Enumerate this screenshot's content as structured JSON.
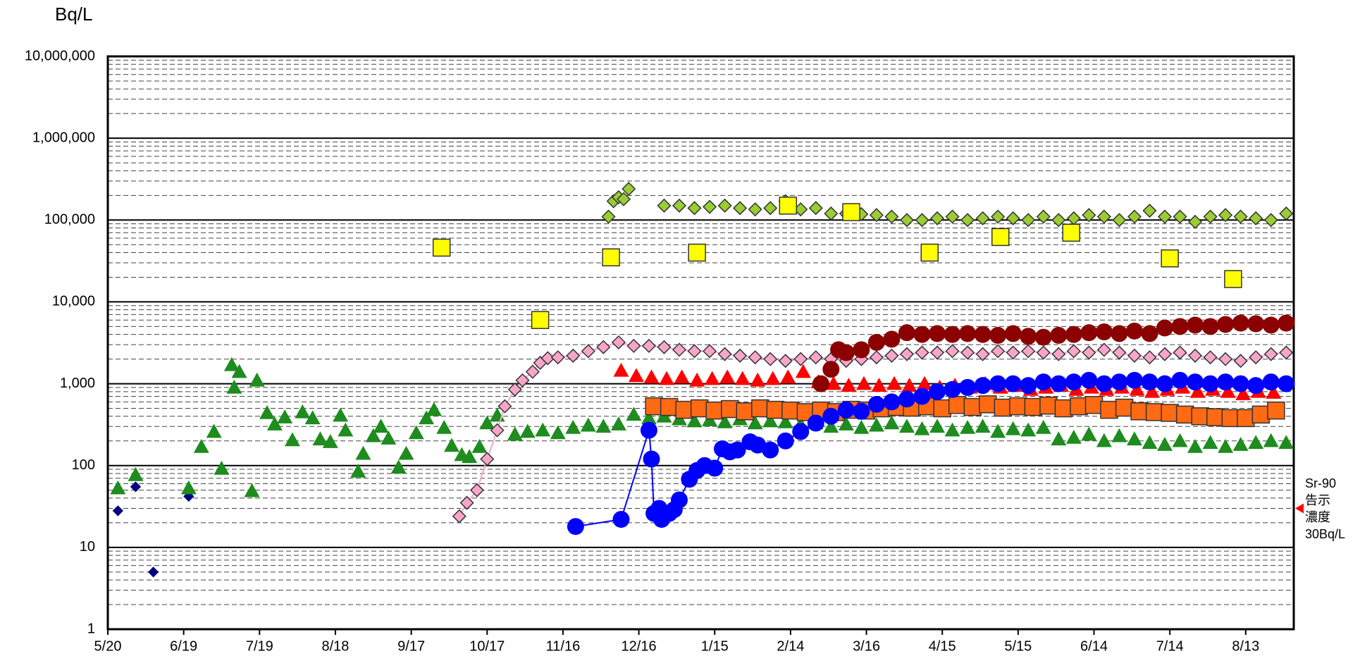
{
  "chart_data": {
    "type": "scatter",
    "y_label": "Bq/L",
    "log_y": true,
    "grid": true,
    "minor_grid": true,
    "xlim": [
      0,
      469
    ],
    "xticks": [
      {
        "value": 0,
        "label": "5/20"
      },
      {
        "value": 30,
        "label": "6/19"
      },
      {
        "value": 60,
        "label": "7/19"
      },
      {
        "value": 90,
        "label": "8/18"
      },
      {
        "value": 120,
        "label": "9/17"
      },
      {
        "value": 150,
        "label": "10/17"
      },
      {
        "value": 180,
        "label": "11/16"
      },
      {
        "value": 210,
        "label": "12/16"
      },
      {
        "value": 240,
        "label": "1/15"
      },
      {
        "value": 270,
        "label": "2/14"
      },
      {
        "value": 300,
        "label": "3/16"
      },
      {
        "value": 330,
        "label": "4/15"
      },
      {
        "value": 360,
        "label": "5/15"
      },
      {
        "value": 390,
        "label": "6/14"
      },
      {
        "value": 420,
        "label": "7/14"
      },
      {
        "value": 450,
        "label": "8/13"
      }
    ],
    "ylim": [
      1,
      10000000
    ],
    "yticks": [
      1,
      10,
      100,
      {
        "value": 1000,
        "label": "1,000"
      },
      {
        "value": 10000,
        "label": "10,000"
      },
      {
        "value": 100000,
        "label": "100,000"
      },
      {
        "value": 1000000,
        "label": "1,000,000"
      },
      {
        "value": 10000000,
        "label": "10,000,000"
      }
    ],
    "series": [
      {
        "color": "#000080",
        "marker": "diamond",
        "x": [
          4,
          11,
          18,
          32
        ],
        "values": [
          28,
          55,
          5,
          42
        ]
      },
      {
        "color": "#1e8c1e",
        "marker": "triangle",
        "x": [
          4,
          11,
          32,
          37,
          42,
          45,
          49,
          50,
          52,
          57,
          59,
          63,
          66,
          70,
          73,
          77,
          81,
          84,
          88,
          92,
          94,
          99,
          101,
          105,
          108,
          111,
          115,
          118,
          122,
          126,
          129,
          133,
          136,
          140,
          143,
          147,
          150,
          154,
          161,
          166,
          172,
          178,
          184,
          190,
          196,
          202,
          208,
          214,
          220,
          226,
          232,
          238,
          244,
          250,
          256,
          262,
          268,
          274,
          280,
          286,
          292,
          298,
          304,
          310,
          316,
          322,
          328,
          334,
          340,
          346,
          352,
          358,
          364,
          370,
          376,
          382,
          388,
          394,
          400,
          406,
          412,
          418,
          424,
          430,
          436,
          442,
          448,
          454,
          460,
          466
        ],
        "values": [
          53,
          77,
          53,
          170,
          260,
          92,
          1700,
          900,
          1400,
          49,
          1100,
          440,
          320,
          390,
          205,
          450,
          380,
          210,
          195,
          410,
          270,
          85,
          140,
          230,
          300,
          215,
          95,
          140,
          250,
          380,
          480,
          290,
          175,
          135,
          128,
          170,
          330,
          410,
          240,
          260,
          270,
          250,
          290,
          310,
          300,
          320,
          420,
          380,
          400,
          370,
          350,
          360,
          340,
          370,
          330,
          350,
          340,
          320,
          330,
          300,
          320,
          290,
          310,
          330,
          300,
          280,
          300,
          270,
          290,
          300,
          260,
          280,
          270,
          290,
          210,
          220,
          240,
          200,
          230,
          210,
          190,
          180,
          200,
          170,
          190,
          170,
          180,
          190,
          200,
          190
        ]
      },
      {
        "color": "#f7a6c9",
        "marker": "diamond",
        "line": true,
        "x": [
          139,
          142,
          146,
          150,
          154,
          157,
          161,
          164,
          168,
          171,
          174,
          178,
          184,
          190,
          196,
          202,
          208,
          214,
          220,
          226,
          232,
          238,
          244,
          250,
          256,
          262,
          268,
          274,
          280,
          286,
          292,
          298,
          304,
          310,
          316,
          322,
          328,
          334,
          340,
          346,
          352,
          358,
          364,
          370,
          376,
          382,
          388,
          394,
          400,
          406,
          412,
          418,
          424,
          430,
          436,
          442,
          448,
          454,
          460,
          466
        ],
        "values": [
          24,
          35,
          50,
          120,
          270,
          530,
          850,
          1100,
          1400,
          1800,
          2050,
          2100,
          2200,
          2500,
          2800,
          3200,
          2900,
          2900,
          2800,
          2600,
          2500,
          2500,
          2300,
          2200,
          2100,
          2000,
          1900,
          2000,
          2100,
          2000,
          1900,
          2000,
          2100,
          2200,
          2300,
          2400,
          2400,
          2500,
          2400,
          2300,
          2500,
          2400,
          2500,
          2400,
          2300,
          2500,
          2400,
          2600,
          2400,
          2200,
          2100,
          2300,
          2400,
          2200,
          2100,
          2000,
          1900,
          2100,
          2300,
          2400
        ]
      },
      {
        "color": "#9acd32",
        "marker": "diamond",
        "x": [
          198,
          200,
          202,
          204,
          206,
          220,
          226,
          232,
          238,
          244,
          250,
          256,
          262,
          268,
          274,
          280,
          286,
          292,
          298,
          304,
          310,
          316,
          322,
          328,
          334,
          340,
          346,
          352,
          358,
          364,
          370,
          376,
          382,
          388,
          394,
          400,
          406,
          412,
          418,
          424,
          430,
          436,
          442,
          448,
          454,
          460,
          466
        ],
        "values": [
          110000,
          170000,
          190000,
          180000,
          240000,
          150000,
          150000,
          140000,
          145000,
          150000,
          140000,
          135000,
          140000,
          170000,
          135000,
          140000,
          120000,
          120000,
          118000,
          115000,
          110000,
          100000,
          100000,
          105000,
          110000,
          100000,
          105000,
          110000,
          105000,
          100000,
          110000,
          100000,
          105000,
          115000,
          110000,
          100000,
          110000,
          130000,
          110000,
          110000,
          95000,
          110000,
          115000,
          110000,
          105000,
          100000,
          120000
        ]
      },
      {
        "color": "#ffff00",
        "marker": "square",
        "x": [
          132,
          171,
          199,
          233,
          269,
          294,
          325,
          353,
          381,
          420,
          445
        ],
        "values": [
          46000,
          6000,
          35000,
          40000,
          150000,
          125000,
          40000,
          62000,
          70000,
          34000,
          19000
        ]
      },
      {
        "color": "#ff0000",
        "marker": "triangle",
        "x": [
          203,
          209,
          215,
          221,
          227,
          233,
          239,
          245,
          251,
          257,
          263,
          269,
          275,
          281,
          287,
          293,
          299,
          305,
          311,
          317,
          323,
          329,
          335,
          341,
          347,
          353,
          359,
          365,
          371,
          377,
          383,
          389,
          395,
          401,
          407,
          413,
          419,
          425,
          431,
          437,
          443,
          449,
          455,
          461
        ],
        "values": [
          1450,
          1250,
          1200,
          1150,
          1200,
          1100,
          1150,
          1200,
          1150,
          1100,
          1150,
          1200,
          1400,
          1050,
          1000,
          950,
          1000,
          950,
          1000,
          950,
          1000,
          900,
          950,
          900,
          1000,
          900,
          950,
          850,
          900,
          950,
          850,
          900,
          850,
          900,
          850,
          800,
          850,
          900,
          800,
          850,
          800,
          750,
          800,
          780
        ]
      },
      {
        "color": "#ff6a13",
        "marker": "square",
        "x": [
          216,
          222,
          228,
          234,
          240,
          246,
          252,
          258,
          264,
          270,
          276,
          282,
          288,
          294,
          300,
          306,
          312,
          318,
          324,
          330,
          336,
          342,
          348,
          354,
          360,
          366,
          372,
          378,
          384,
          390,
          396,
          402,
          408,
          414,
          420,
          426,
          432,
          438,
          444,
          450,
          456,
          462
        ],
        "values": [
          530,
          520,
          480,
          500,
          470,
          490,
          460,
          500,
          480,
          470,
          450,
          470,
          450,
          480,
          470,
          500,
          520,
          510,
          530,
          500,
          550,
          520,
          560,
          510,
          530,
          520,
          540,
          500,
          530,
          550,
          480,
          510,
          460,
          450,
          440,
          420,
          400,
          390,
          380,
          380,
          420,
          470
        ]
      },
      {
        "color": "#8b0000",
        "marker": "circle",
        "x": [
          282,
          286,
          289,
          292,
          298,
          304,
          310,
          316,
          322,
          328,
          334,
          340,
          346,
          352,
          358,
          364,
          370,
          376,
          382,
          388,
          394,
          400,
          406,
          412,
          418,
          424,
          430,
          436,
          442,
          448,
          454,
          460,
          466
        ],
        "values": [
          1000,
          1500,
          2600,
          2400,
          2600,
          3200,
          3500,
          4200,
          4000,
          4100,
          4000,
          4100,
          4000,
          3900,
          4100,
          3800,
          3700,
          3900,
          4000,
          4200,
          4300,
          4100,
          4400,
          4100,
          4800,
          5000,
          5200,
          5000,
          5300,
          5500,
          5400,
          5200,
          5500
        ]
      },
      {
        "color": "#0000ff",
        "marker": "circle",
        "line": true,
        "x": [
          185,
          203,
          214,
          215,
          216,
          218,
          219,
          222,
          224,
          226,
          230,
          233,
          236,
          240,
          243,
          246,
          249,
          254,
          257,
          262,
          268,
          274,
          280,
          286,
          292,
          298,
          304,
          310,
          316,
          322,
          328,
          334,
          340,
          346,
          352,
          358,
          364,
          370,
          376,
          382,
          388,
          394,
          400,
          406,
          412,
          418,
          424,
          430,
          436,
          442,
          448,
          454,
          460,
          466
        ],
        "values": [
          18,
          22,
          270,
          120,
          26,
          30,
          22,
          26,
          29,
          38,
          68,
          87,
          100,
          93,
          160,
          147,
          155,
          195,
          178,
          155,
          200,
          260,
          330,
          400,
          480,
          460,
          560,
          600,
          650,
          700,
          800,
          850,
          900,
          950,
          1000,
          1000,
          950,
          1050,
          1000,
          1050,
          1100,
          1000,
          1050,
          1100,
          1050,
          1000,
          1100,
          1050,
          1000,
          1050,
          1000,
          950,
          1050,
          1000
        ]
      }
    ],
    "annotation": {
      "lines": [
        "Sr-90",
        "告示",
        "濃度",
        "30Bq/L"
      ],
      "value": 30,
      "color": "#ff0000"
    }
  }
}
